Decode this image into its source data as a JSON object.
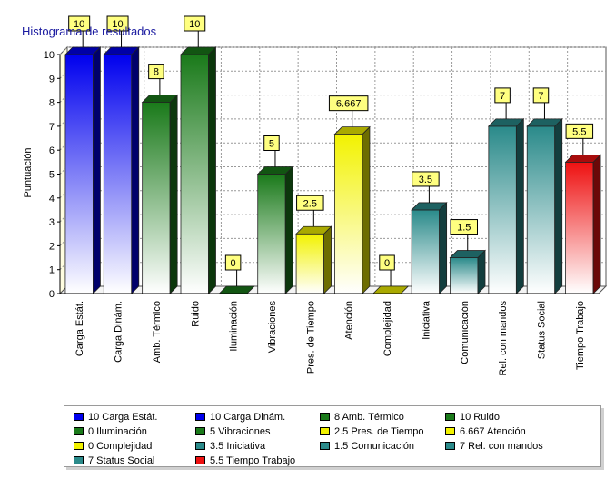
{
  "chart_data": {
    "type": "bar",
    "title": "Histograma de resultados",
    "ylabel": "Puntuación",
    "xlabel": "",
    "ylim": [
      0,
      10
    ],
    "yticks": [
      "0",
      "1",
      "2",
      "3",
      "4",
      "5",
      "6",
      "7",
      "8",
      "9",
      "10"
    ],
    "grid": true,
    "legend_position": "bottom",
    "categories": [
      "Carga Estát.",
      "Carga Dinám.",
      "Amb. Térmico",
      "Ruido",
      "Iluminación",
      "Vibraciones",
      "Pres. de Tiempo",
      "Atención",
      "Complejidad",
      "Iniciativa",
      "Comunicación",
      "Rel. con mandos",
      "Status Social",
      "Tiempo Trabajo"
    ],
    "values": [
      10,
      10,
      8,
      10,
      0,
      5,
      2.5,
      6.667,
      0,
      3.5,
      1.5,
      7,
      7,
      5.5
    ],
    "value_labels": [
      "10",
      "10",
      "8",
      "10",
      "0",
      "5",
      "2.5",
      "6.667",
      "0",
      "3.5",
      "1.5",
      "7",
      "7",
      "5.5"
    ],
    "colors": [
      "#0000ee",
      "#0000ee",
      "#1a7a1a",
      "#1a7a1a",
      "#1a7a1a",
      "#1a7a1a",
      "#f2f200",
      "#f2f200",
      "#f2f200",
      "#2a8a8a",
      "#2a8a8a",
      "#2a8a8a",
      "#2a8a8a",
      "#ee1111"
    ],
    "legend": [
      "10 Carga Estát.",
      "10 Carga Dinám.",
      "8 Amb. Térmico",
      "10 Ruido",
      "0 Iluminación",
      "5 Vibraciones",
      "2.5 Pres. de Tiempo",
      "6.667 Atención",
      "0 Complejidad",
      "3.5 Iniciativa",
      "1.5 Comunicación",
      "7 Rel. con mandos",
      "7 Status Social",
      "5.5 Tiempo Trabajo"
    ]
  }
}
